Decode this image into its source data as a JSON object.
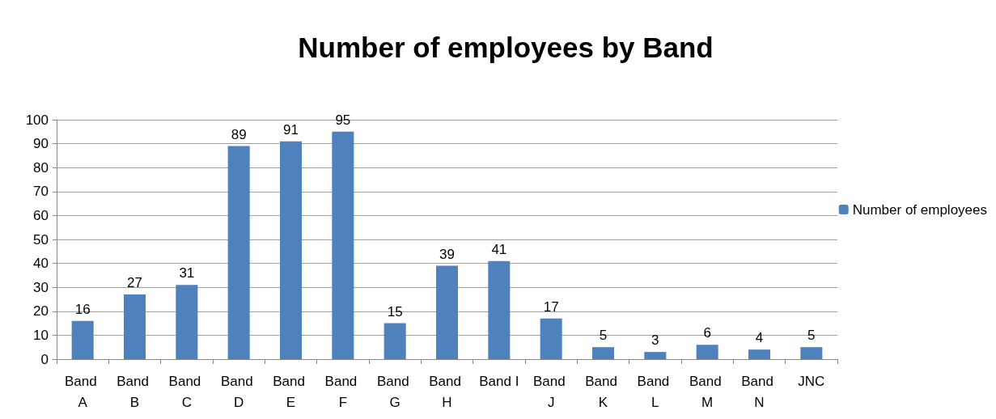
{
  "chart_data": {
    "type": "bar",
    "title": "Number of employees by Band",
    "categories": [
      "Band A",
      "Band B",
      "Band C",
      "Band D",
      "Band E",
      "Band F",
      "Band G",
      "Band H",
      "Band I",
      "Band J",
      "Band K",
      "Band L",
      "Band M",
      "Band N",
      "JNC"
    ],
    "series": [
      {
        "name": "Number of employees",
        "color": "#4f81bd",
        "values": [
          16,
          27,
          31,
          89,
          91,
          95,
          15,
          39,
          41,
          17,
          5,
          3,
          6,
          4,
          5
        ]
      }
    ],
    "ylim": [
      0,
      100
    ],
    "yticks": [
      0,
      10,
      20,
      30,
      40,
      50,
      60,
      70,
      80,
      90,
      100
    ],
    "grid": "y",
    "legend": "right",
    "data_labels": true
  }
}
